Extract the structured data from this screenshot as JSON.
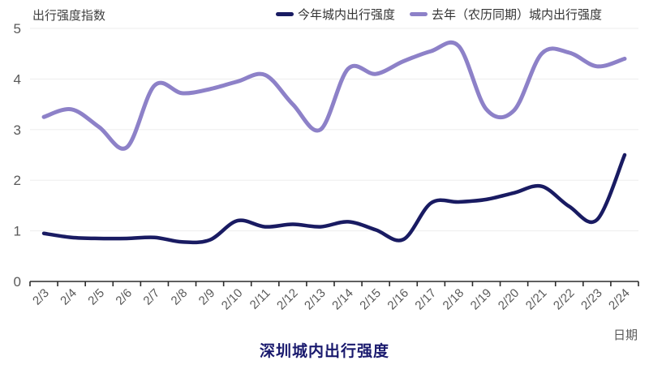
{
  "colors": {
    "background": "#ffffff",
    "grid": "#ededed",
    "axis_line": "#2b2b2b",
    "axis_text": "#595959",
    "label_text": "#404040",
    "title_text": "#1a1a6e"
  },
  "chart_data": {
    "type": "line",
    "title": "深圳城内出行强度",
    "ylabel": "出行强度指数",
    "xlabel": "日期",
    "categories": [
      "2/3",
      "2/4",
      "2/5",
      "2/6",
      "2/7",
      "2/8",
      "2/9",
      "2/10",
      "2/11",
      "2/12",
      "2/13",
      "2/14",
      "2/15",
      "2/16",
      "2/17",
      "2/18",
      "2/19",
      "2/20",
      "2/21",
      "2/22",
      "2/23",
      "2/24"
    ],
    "series": [
      {
        "name": "今年城内出行强度",
        "color": "#191b62",
        "line_width": 4.5,
        "values": [
          0.95,
          0.87,
          0.85,
          0.85,
          0.87,
          0.78,
          0.82,
          1.2,
          1.08,
          1.13,
          1.08,
          1.18,
          1.02,
          0.83,
          1.55,
          1.57,
          1.62,
          1.75,
          1.88,
          1.48,
          1.22,
          2.5
        ]
      },
      {
        "name": "去年（农历同期）城内出行强度",
        "color": "#8d81c8",
        "line_width": 5,
        "values": [
          3.25,
          3.4,
          3.05,
          2.65,
          3.87,
          3.72,
          3.8,
          3.95,
          4.08,
          3.5,
          3.0,
          4.2,
          4.1,
          4.35,
          4.55,
          4.65,
          3.4,
          3.38,
          4.5,
          4.52,
          4.25,
          4.4
        ]
      }
    ],
    "ylim": [
      0,
      5
    ],
    "yticks": [
      0,
      1,
      2,
      3,
      4,
      5
    ],
    "grid": true,
    "smooth": true,
    "legend_position": "top"
  }
}
